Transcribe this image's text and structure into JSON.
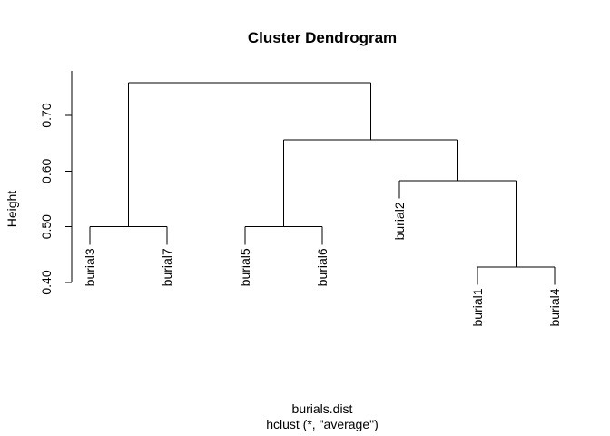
{
  "chart_data": {
    "type": "dendrogram",
    "title": "Cluster Dendrogram",
    "xlabel": "burials.dist",
    "sub": "hclust (*, \"average\")",
    "ylabel": "Height",
    "yticks": [
      0.4,
      0.5,
      0.6,
      0.7
    ],
    "ytick_labels": [
      "0.40",
      "0.50",
      "0.60",
      "0.70"
    ],
    "ylim": [
      0.4,
      0.75
    ],
    "leaves": [
      "burial3",
      "burial7",
      "burial5",
      "burial6",
      "burial2",
      "burial1",
      "burial4"
    ],
    "merges": [
      {
        "left": "burial1",
        "right": "burial4",
        "height": 0.428
      },
      {
        "left": "burial3",
        "right": "burial7",
        "height": 0.5
      },
      {
        "left": "burial5",
        "right": "burial6",
        "height": 0.5
      },
      {
        "left": "burial2",
        "right": "burial1+burial4",
        "height": 0.583
      },
      {
        "left": "burial5+burial6",
        "right": "burial2+burial1+burial4",
        "height": 0.656
      },
      {
        "left": "burial3+burial7",
        "right": "burial5+burial6+burial2+burial1+burial4",
        "height": 0.759
      }
    ]
  }
}
